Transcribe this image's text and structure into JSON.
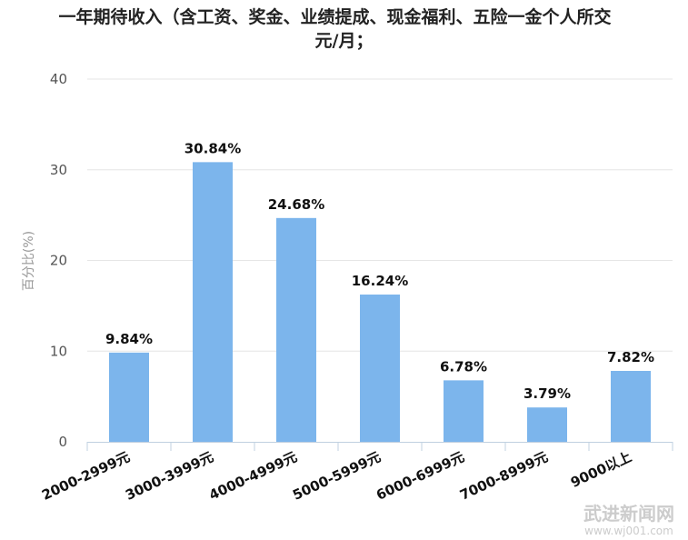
{
  "chart_data": {
    "type": "bar",
    "title_line1": "一年期待收入（含工资、奖金、业绩提成、现金福利、五险一金个人所交",
    "title_line2": "元/月；",
    "ylabel": "百分比(%)",
    "xlabel": "",
    "ylim": [
      0,
      40
    ],
    "yticks": [
      0,
      10,
      20,
      30,
      40
    ],
    "categories": [
      "2000-2999元",
      "3000-3999元",
      "4000-4999元",
      "5000-5999元",
      "6000-6999元",
      "7000-8999元",
      "9000以上"
    ],
    "values": [
      9.84,
      30.84,
      24.68,
      16.24,
      6.78,
      3.79,
      7.82
    ],
    "data_labels": [
      "9.84%",
      "30.84%",
      "24.68%",
      "16.24%",
      "6.78%",
      "3.79%",
      "7.82%"
    ],
    "grid": true,
    "bar_color": "#7cb5ec",
    "grid_color": "#e6e6e6",
    "axis_color": "#c0d0e0"
  },
  "watermark": {
    "text": "武进新闻网",
    "url": "www.wj001.com"
  }
}
